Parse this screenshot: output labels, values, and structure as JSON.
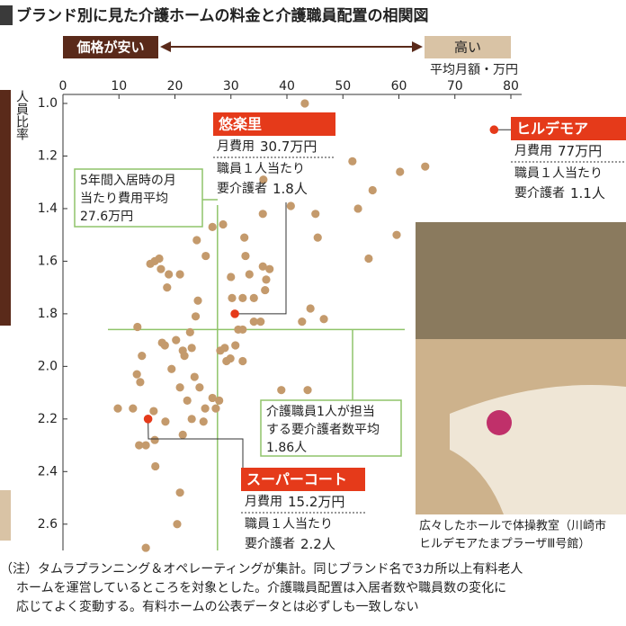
{
  "chart_data": {
    "type": "scatter",
    "title": "ブランド別に見た介護ホームの料金と介護職員配置の相関図",
    "price_low": "価格が安い",
    "price_high": "高い",
    "x_label": "平均月額・万円",
    "y_label": "人員比率",
    "xlim": [
      0,
      80
    ],
    "xticks": [
      0,
      10,
      20,
      30,
      40,
      50,
      60,
      70,
      80
    ],
    "ylim": [
      1.0,
      2.7
    ],
    "y_inverted": true,
    "yticks": [
      {
        "value": 1.0,
        "label": "1.0"
      },
      1.2,
      1.4,
      1.6,
      1.8,
      {
        "value": 2.0,
        "label": "2.0"
      },
      2.2,
      2.4,
      2.6
    ],
    "color": "#c49a6c",
    "x": [
      43.2,
      60.2,
      64.7,
      51.7,
      55.3,
      52.7,
      40.7,
      35.7,
      35.8,
      28.6,
      23.9,
      26.7,
      32.4,
      25.5,
      54.6,
      45.5,
      59.6,
      45.1,
      16.4,
      17.2,
      15.6,
      17.5,
      18.9,
      20.9,
      35.7,
      36.9,
      36.3,
      32.6,
      30.0,
      33.3,
      36.1,
      30.2,
      32.1,
      34.1,
      24.1,
      18.6,
      44.2,
      46.6,
      42.7,
      34.1,
      35.3,
      31.3,
      32.1,
      23.7,
      22.7,
      13.3,
      20.2,
      18.2,
      17.7,
      23.0,
      21.7,
      21.4,
      14.1,
      28.1,
      28.9,
      30.8,
      29.2,
      32.1,
      29.9,
      19.4,
      23.5,
      20.9,
      13.2,
      13.8,
      24.4,
      39.0,
      43.7,
      22.2,
      26.7,
      27.9,
      9.8,
      12.5,
      16.2,
      25.4,
      27.3,
      23.0,
      18.3,
      25.1,
      21.4,
      16.4,
      14.8,
      13.6,
      16.5,
      20.9,
      20.4,
      14.8
    ],
    "values": [
      1.0,
      1.26,
      1.24,
      1.22,
      1.33,
      1.4,
      1.39,
      1.42,
      1.29,
      1.46,
      1.52,
      1.47,
      1.51,
      1.58,
      1.59,
      1.51,
      1.5,
      1.42,
      1.6,
      1.59,
      1.61,
      1.63,
      1.65,
      1.65,
      1.62,
      1.63,
      1.67,
      1.58,
      1.66,
      1.65,
      1.71,
      1.74,
      1.74,
      1.74,
      1.75,
      1.7,
      1.78,
      1.82,
      1.83,
      1.83,
      1.83,
      1.86,
      1.86,
      1.81,
      1.87,
      1.85,
      1.9,
      1.92,
      1.91,
      1.93,
      1.96,
      1.94,
      1.96,
      1.94,
      1.93,
      1.92,
      1.98,
      1.98,
      1.97,
      2.01,
      2.04,
      2.08,
      2.03,
      2.06,
      2.08,
      2.09,
      2.09,
      2.13,
      2.12,
      2.13,
      2.16,
      2.16,
      2.17,
      2.16,
      2.16,
      2.2,
      2.21,
      2.21,
      2.26,
      2.28,
      2.3,
      2.3,
      2.38,
      2.48,
      2.6,
      2.69
    ],
    "highlight_color": "#e53a1a",
    "highlights": [
      {
        "name": "悠楽里",
        "x": 30.7,
        "y": 1.8,
        "cost_prefix": "月費用",
        "x_label": "30.7万円",
        "staff_line": "職員１人当たり",
        "staff_prefix": "要介護者",
        "y_label": "1.8人"
      },
      {
        "name": "ヒルデモア",
        "x": 77,
        "y": 1.1,
        "cost_prefix": "月費用",
        "x_label": "77万円",
        "staff_line": "職員１人当たり",
        "staff_prefix": "要介護者",
        "y_label": "1.1人"
      },
      {
        "name": "スーパーコート",
        "x": 15.2,
        "y": 2.2,
        "cost_prefix": "月費用",
        "x_label": "15.2万円",
        "staff_line": "職員１人当たり",
        "staff_prefix": "要介護者",
        "y_label": "2.2人"
      }
    ],
    "reference_color": "#8fc46a",
    "reference_lines": [
      {
        "axis": "x",
        "value": 27.6,
        "label_lines": [
          "5年間入居時の月",
          "当たり費用平均"
        ],
        "value_label": "27.6万円"
      },
      {
        "axis": "y",
        "value": 1.86,
        "label_lines": [
          "介護職員1人が担当",
          "する要介護者数平均"
        ],
        "value_label": "1.86人"
      }
    ]
  },
  "photo": {
    "caption_lines": [
      "広々したホールで体操教室（川崎市",
      "ヒルデモアたまプラーザⅢ号館）"
    ]
  },
  "note_lines": [
    "（注）タムラプランニング＆オペレーティングが集計。同じブランド名で3カ所以上有料老人",
    "ホームを運営しているところを対象とした。介護職員配置は入居者数や職員数の変化に",
    "応じてよく変動する。有料ホームの公表データとは必ずしも一致しない"
  ]
}
